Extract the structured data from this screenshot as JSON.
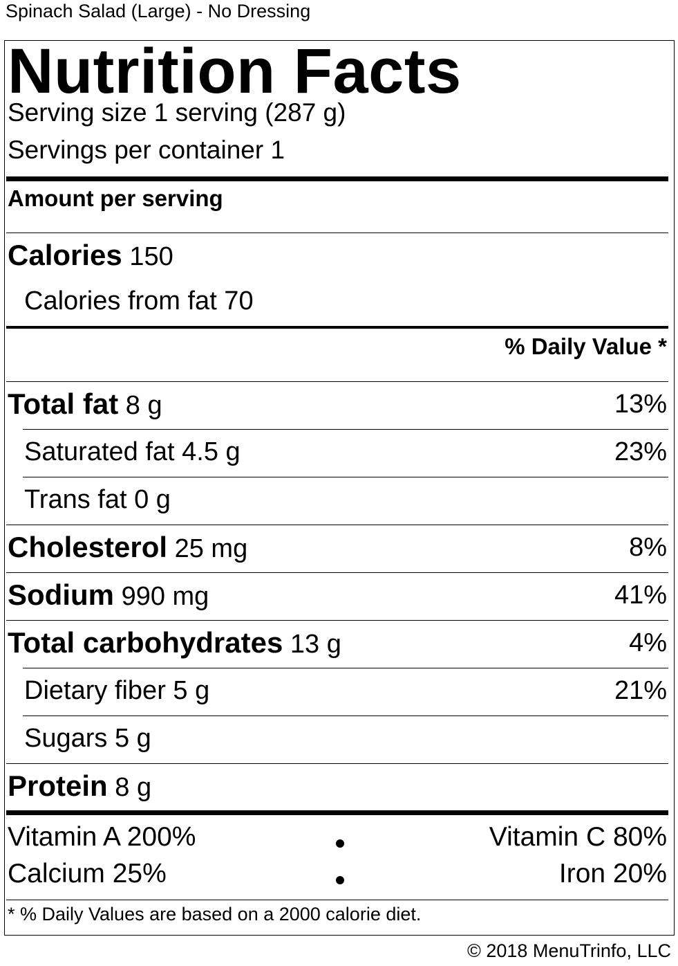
{
  "product_name": "Spinach Salad (Large) - No Dressing",
  "title": "Nutrition Facts",
  "serving_size": "Serving size 1 serving (287 g)",
  "servings_per_container": "Servings per container 1",
  "amount_per_serving": "Amount per serving",
  "calories": {
    "label": "Calories",
    "value": "150"
  },
  "calories_from_fat": "Calories from fat 70",
  "daily_value_header": "% Daily Value *",
  "nutrients": [
    {
      "label": "Total fat",
      "amount": "8 g",
      "dv": "13%"
    },
    {
      "label": "Saturated fat 4.5 g",
      "dv": "23%"
    },
    {
      "label": "Trans fat 0 g",
      "dv": ""
    },
    {
      "label": "Cholesterol",
      "amount": "25 mg",
      "dv": "8%"
    },
    {
      "label": "Sodium",
      "amount": "990 mg",
      "dv": "41%"
    },
    {
      "label": "Total carbohydrates",
      "amount": "13 g",
      "dv": "4%"
    },
    {
      "label": "Dietary fiber 5 g",
      "dv": "21%"
    },
    {
      "label": "Sugars 5 g",
      "dv": ""
    },
    {
      "label": "Protein",
      "amount": "8 g",
      "dv": ""
    }
  ],
  "vitamins": {
    "vitamin_a": "Vitamin A 200%",
    "vitamin_c": "Vitamin C 80%",
    "calcium": "Calcium 25%",
    "iron": "Iron 20%"
  },
  "footnote": "* % Daily Values are based on a 2000 calorie diet.",
  "copyright": "© 2018 MenuTrinfo, LLC"
}
